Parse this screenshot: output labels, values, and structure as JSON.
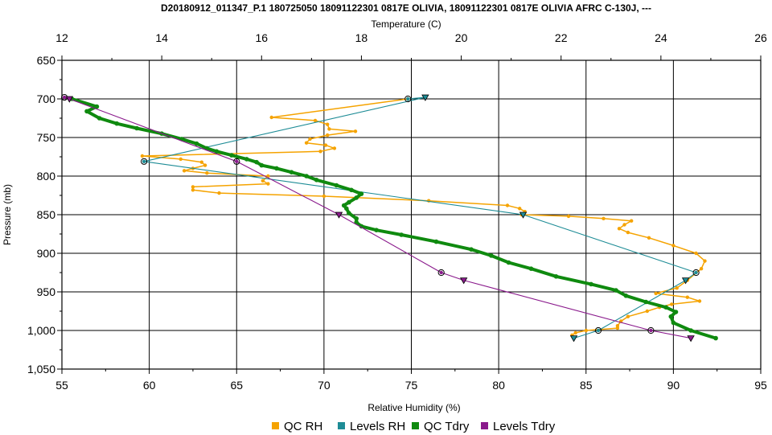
{
  "chart_data": {
    "type": "line",
    "title": "D20180912_011347_P.1 180725050 18091122301 0817E OLIVIA, 18091122301 0817E OLIVIA AFRC C-130J, ---",
    "top_axis": {
      "label": "Temperature (C)",
      "range": [
        12,
        26
      ],
      "ticks": [
        "12",
        "14",
        "16",
        "18",
        "20",
        "22",
        "24",
        "26"
      ]
    },
    "bottom_axis": {
      "label": "Relative Humidity (%)",
      "range": [
        55,
        95
      ],
      "ticks": [
        "55",
        "60",
        "65",
        "70",
        "75",
        "80",
        "85",
        "90",
        "95"
      ]
    },
    "y_axis": {
      "label": "Pressure (mb)",
      "range": [
        650,
        1050
      ],
      "inverted": true,
      "ticks": [
        "650",
        "700",
        "750",
        "800",
        "850",
        "900",
        "950",
        "1,000",
        "1,050"
      ]
    },
    "grid": true,
    "legend_position": "bottom",
    "colors": {
      "qc_rh": "#f5a300",
      "levels_rh": "#1e8c96",
      "qc_tdry": "#0f8a0f",
      "levels_tdry": "#8a1a8c"
    },
    "series": [
      {
        "key": "qc_rh",
        "name": "QC RH",
        "axis": "RH",
        "points": [
          [
            74.8,
            700
          ],
          [
            67,
            724
          ],
          [
            69.5,
            728
          ],
          [
            70.2,
            733
          ],
          [
            70.3,
            739
          ],
          [
            71.8,
            742
          ],
          [
            70.2,
            747
          ],
          [
            69.2,
            752
          ],
          [
            69,
            757
          ],
          [
            70.1,
            760
          ],
          [
            70.6,
            764
          ],
          [
            69.8,
            768
          ],
          [
            59.6,
            774
          ],
          [
            61.8,
            778
          ],
          [
            63,
            782
          ],
          [
            63.2,
            786
          ],
          [
            62.5,
            790
          ],
          [
            62,
            793
          ],
          [
            63.3,
            796
          ],
          [
            66.8,
            800
          ],
          [
            66.5,
            806
          ],
          [
            66.8,
            810
          ],
          [
            62.5,
            814
          ],
          [
            62.5,
            818
          ],
          [
            64,
            822
          ],
          [
            70,
            826
          ],
          [
            76,
            832
          ],
          [
            80.5,
            838
          ],
          [
            81.2,
            842
          ],
          [
            81.5,
            846
          ],
          [
            81.3,
            850
          ],
          [
            84,
            852
          ],
          [
            86,
            855
          ],
          [
            87.6,
            858
          ],
          [
            87.2,
            863
          ],
          [
            86.9,
            868
          ],
          [
            87.4,
            873
          ],
          [
            88.6,
            880
          ],
          [
            90,
            890
          ],
          [
            91.3,
            900
          ],
          [
            91.8,
            910
          ],
          [
            91.6,
            920
          ],
          [
            90.8,
            935
          ],
          [
            90.2,
            945
          ],
          [
            89,
            952
          ],
          [
            90.8,
            957
          ],
          [
            91.5,
            962
          ],
          [
            89.9,
            966
          ],
          [
            89.2,
            970
          ],
          [
            88.5,
            975
          ],
          [
            87.4,
            982
          ],
          [
            87,
            988
          ],
          [
            86.8,
            994
          ],
          [
            86.8,
            997
          ],
          [
            85,
            1000
          ],
          [
            84.4,
            1003
          ],
          [
            84.2,
            1006
          ]
        ]
      },
      {
        "key": "levels_rh",
        "name": "Levels RH",
        "axis": "RH",
        "points": [
          [
            74.8,
            700
          ],
          [
            75.8,
            698
          ],
          [
            59.7,
            781
          ],
          [
            81.4,
            850
          ],
          [
            91.3,
            925
          ],
          [
            90.7,
            935
          ],
          [
            85.7,
            1000
          ],
          [
            84.3,
            1010
          ]
        ]
      },
      {
        "key": "qc_tdry",
        "name": "QC Tdry",
        "axis": "T",
        "points": [
          [
            12.2,
            700
          ],
          [
            12.7,
            710
          ],
          [
            12.5,
            716
          ],
          [
            12.75,
            725
          ],
          [
            13.1,
            732
          ],
          [
            13.5,
            738
          ],
          [
            14,
            745
          ],
          [
            14.4,
            752
          ],
          [
            14.7,
            758
          ],
          [
            14.9,
            764
          ],
          [
            15.1,
            768
          ],
          [
            15.4,
            773
          ],
          [
            15.7,
            778
          ],
          [
            15.9,
            782
          ],
          [
            16,
            786
          ],
          [
            16.3,
            790
          ],
          [
            16.6,
            795
          ],
          [
            16.9,
            800
          ],
          [
            17.1,
            805
          ],
          [
            17.5,
            812
          ],
          [
            17.8,
            818
          ],
          [
            18,
            823
          ],
          [
            17.9,
            828
          ],
          [
            17.75,
            834
          ],
          [
            17.65,
            838
          ],
          [
            17.7,
            842
          ],
          [
            17.75,
            848
          ],
          [
            17.9,
            855
          ],
          [
            17.9,
            860
          ],
          [
            18,
            865
          ],
          [
            18.3,
            870
          ],
          [
            18.8,
            876
          ],
          [
            19.5,
            885
          ],
          [
            20.2,
            895
          ],
          [
            20.6,
            903
          ],
          [
            20.95,
            912
          ],
          [
            21.4,
            920
          ],
          [
            21.9,
            930
          ],
          [
            22.6,
            940
          ],
          [
            23.1,
            948
          ],
          [
            23.3,
            955
          ],
          [
            23.7,
            963
          ],
          [
            24.1,
            970
          ],
          [
            24.3,
            976
          ],
          [
            24.2,
            982
          ],
          [
            24.25,
            990
          ],
          [
            24.6,
            1000
          ],
          [
            25.1,
            1010
          ]
        ]
      },
      {
        "key": "levels_tdry",
        "name": "Levels Tdry",
        "axis": "T",
        "points": [
          [
            12.05,
            698
          ],
          [
            12.15,
            700
          ],
          [
            15.5,
            781
          ],
          [
            17.55,
            850
          ],
          [
            19.6,
            925
          ],
          [
            20.05,
            935
          ],
          [
            23.8,
            1000
          ],
          [
            24.6,
            1010
          ]
        ]
      }
    ]
  }
}
